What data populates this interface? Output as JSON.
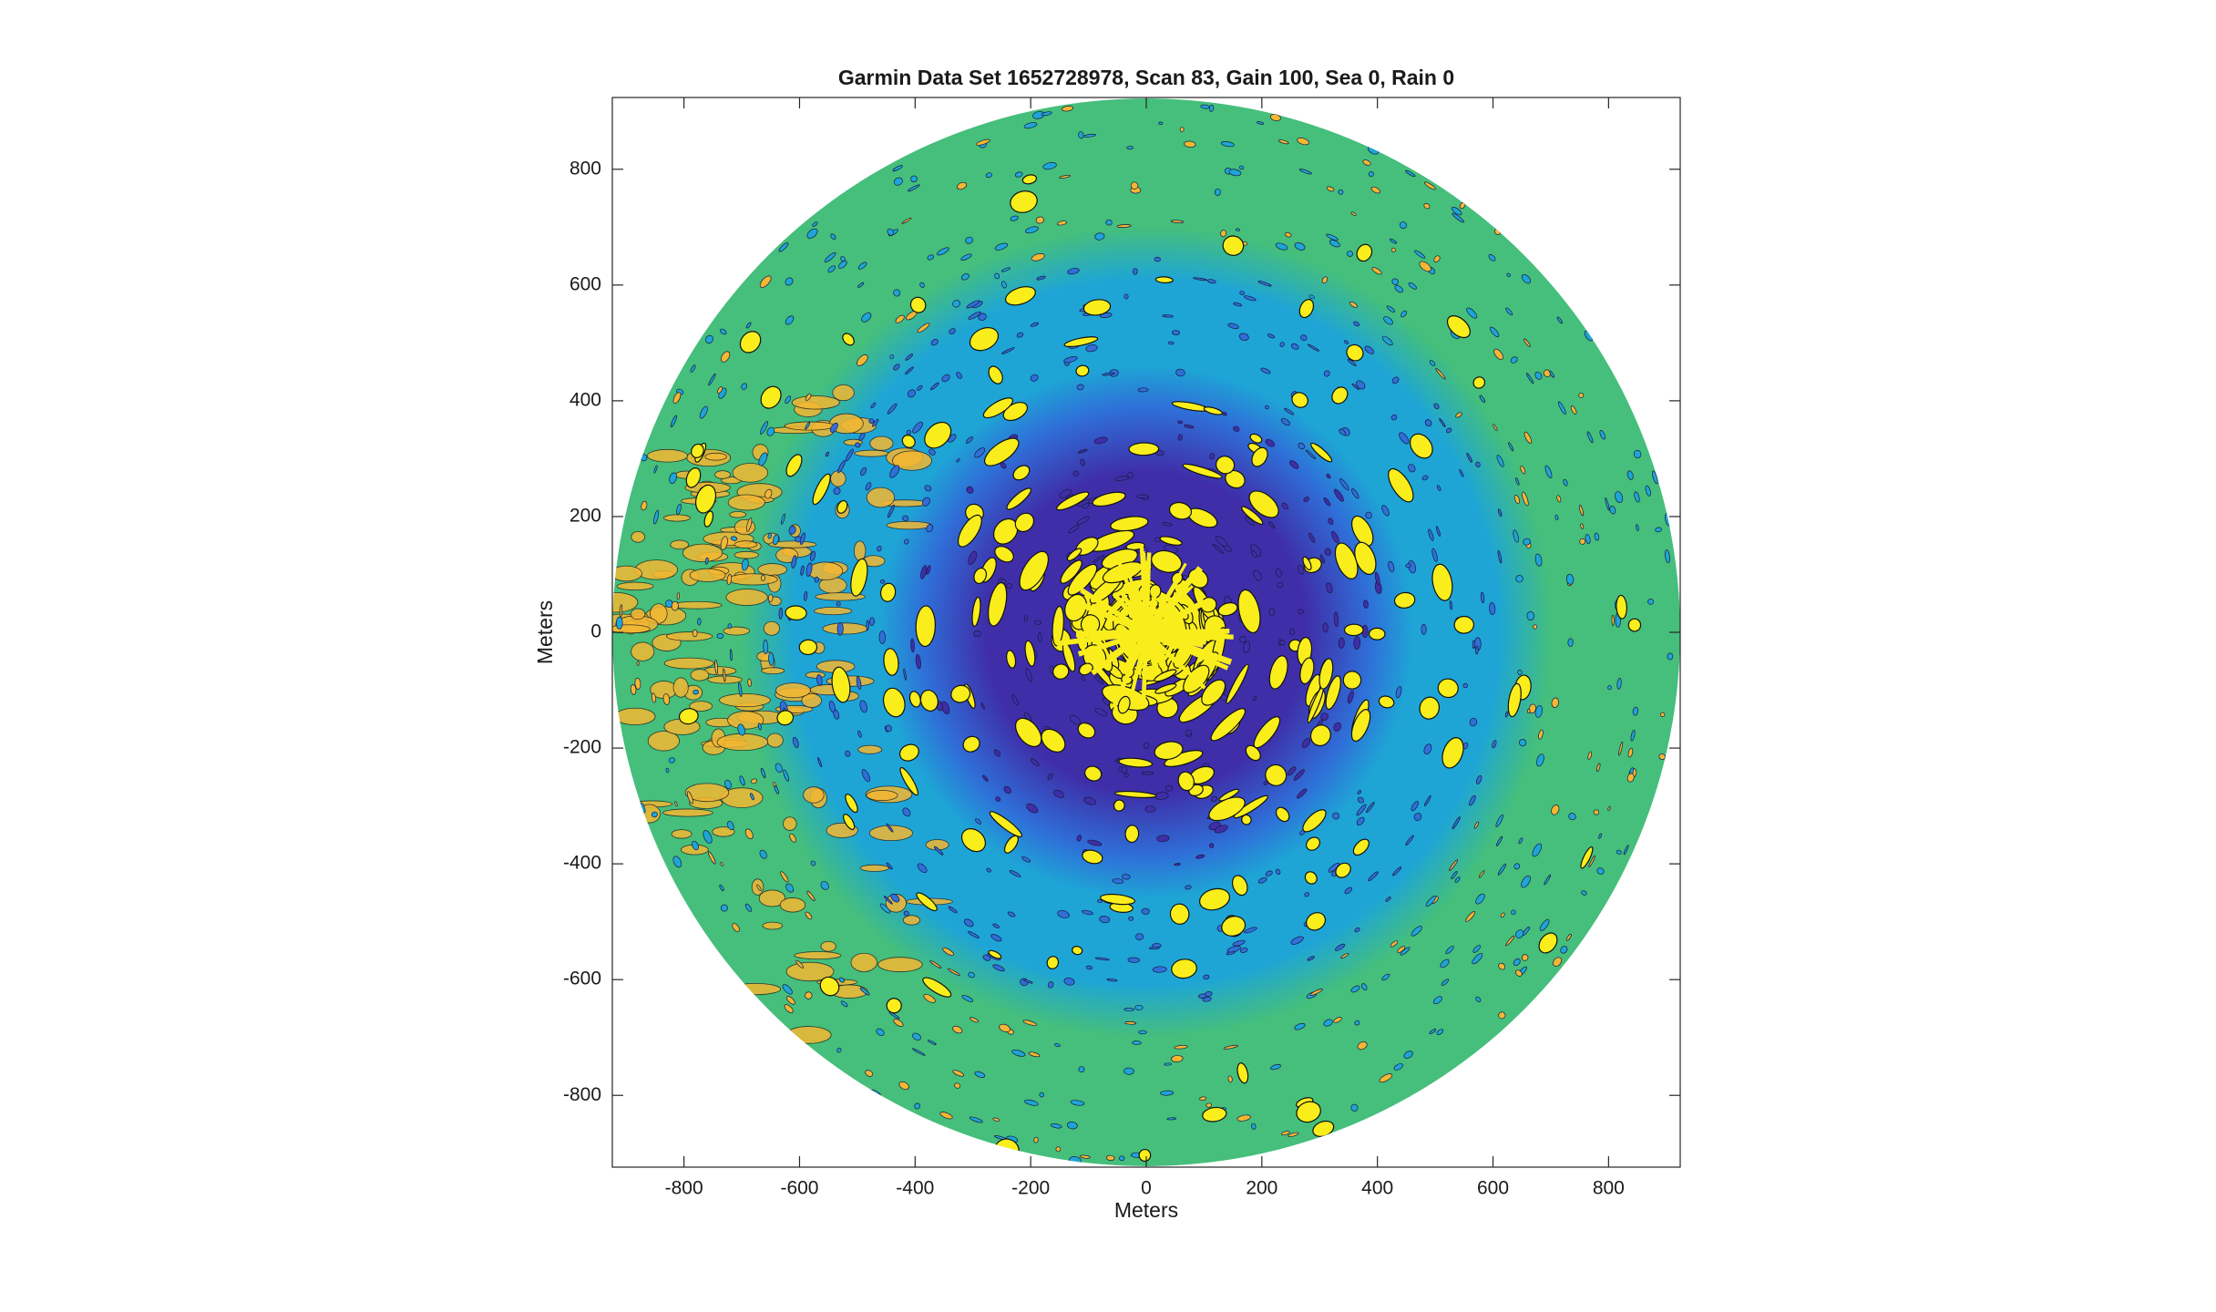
{
  "chart_data": {
    "type": "contour",
    "title": "Garmin Data Set 1652728978, Scan 83, Gain 100, Sea 0, Rain 0",
    "xlabel": "Meters",
    "ylabel": "Meters",
    "xlim": [
      -924,
      924
    ],
    "ylim": [
      -924,
      924
    ],
    "xticks": [
      -800,
      -600,
      -400,
      -200,
      0,
      200,
      400,
      600,
      800
    ],
    "yticks": [
      -800,
      -600,
      -400,
      -200,
      0,
      200,
      400,
      600,
      800
    ],
    "colormap": [
      "#3f2ea8",
      "#2f6fd8",
      "#1ea5d6",
      "#45bf7b",
      "#f2b733",
      "#f9ee1c"
    ]
  }
}
